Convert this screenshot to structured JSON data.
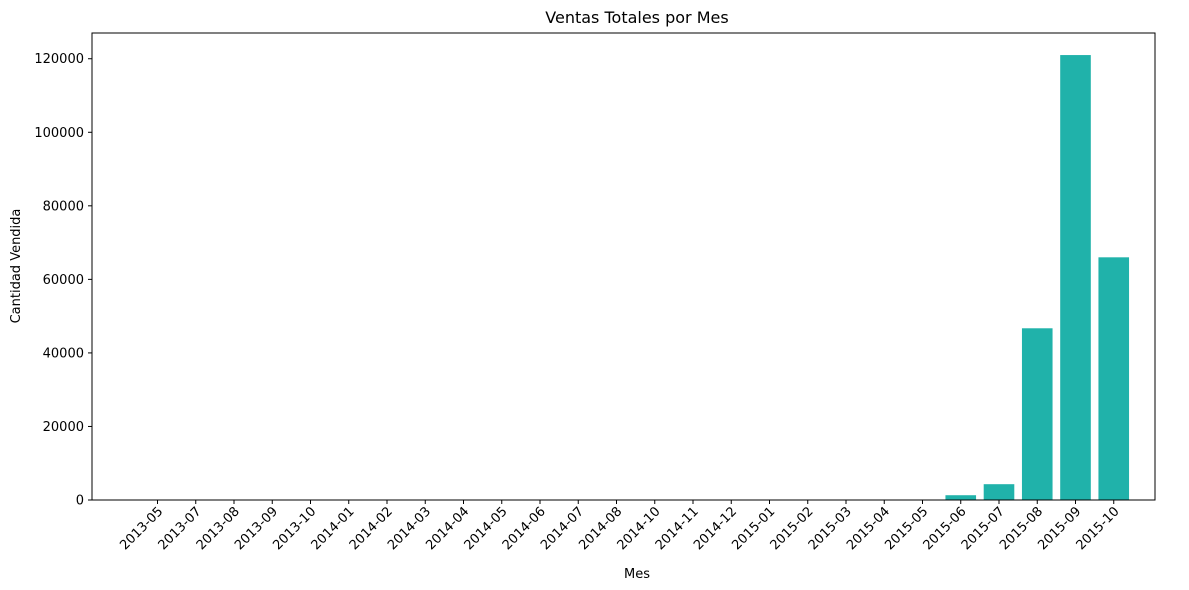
{
  "chart_data": {
    "type": "bar",
    "title": "Ventas Totales por Mes",
    "xlabel": "Mes",
    "ylabel": "Cantidad Vendida",
    "categories": [
      "2013-05",
      "2013-07",
      "2013-08",
      "2013-09",
      "2013-10",
      "2014-01",
      "2014-02",
      "2014-03",
      "2014-04",
      "2014-05",
      "2014-06",
      "2014-07",
      "2014-08",
      "2014-10",
      "2014-11",
      "2014-12",
      "2015-01",
      "2015-02",
      "2015-03",
      "2015-04",
      "2015-05",
      "2015-06",
      "2015-07",
      "2015-08",
      "2015-09",
      "2015-10"
    ],
    "values": [
      5,
      5,
      5,
      5,
      5,
      5,
      5,
      5,
      5,
      5,
      5,
      5,
      5,
      5,
      5,
      5,
      5,
      5,
      5,
      5,
      5,
      1300,
      4300,
      46700,
      121000,
      66000
    ],
    "yticks": [
      0,
      20000,
      40000,
      60000,
      80000,
      100000,
      120000
    ],
    "ytick_labels": [
      "0",
      "20000",
      "40000",
      "60000",
      "80000",
      "100000",
      "120000"
    ],
    "ylim": [
      0,
      127000
    ],
    "bar_color": "#20b2aa",
    "grid": false
  }
}
